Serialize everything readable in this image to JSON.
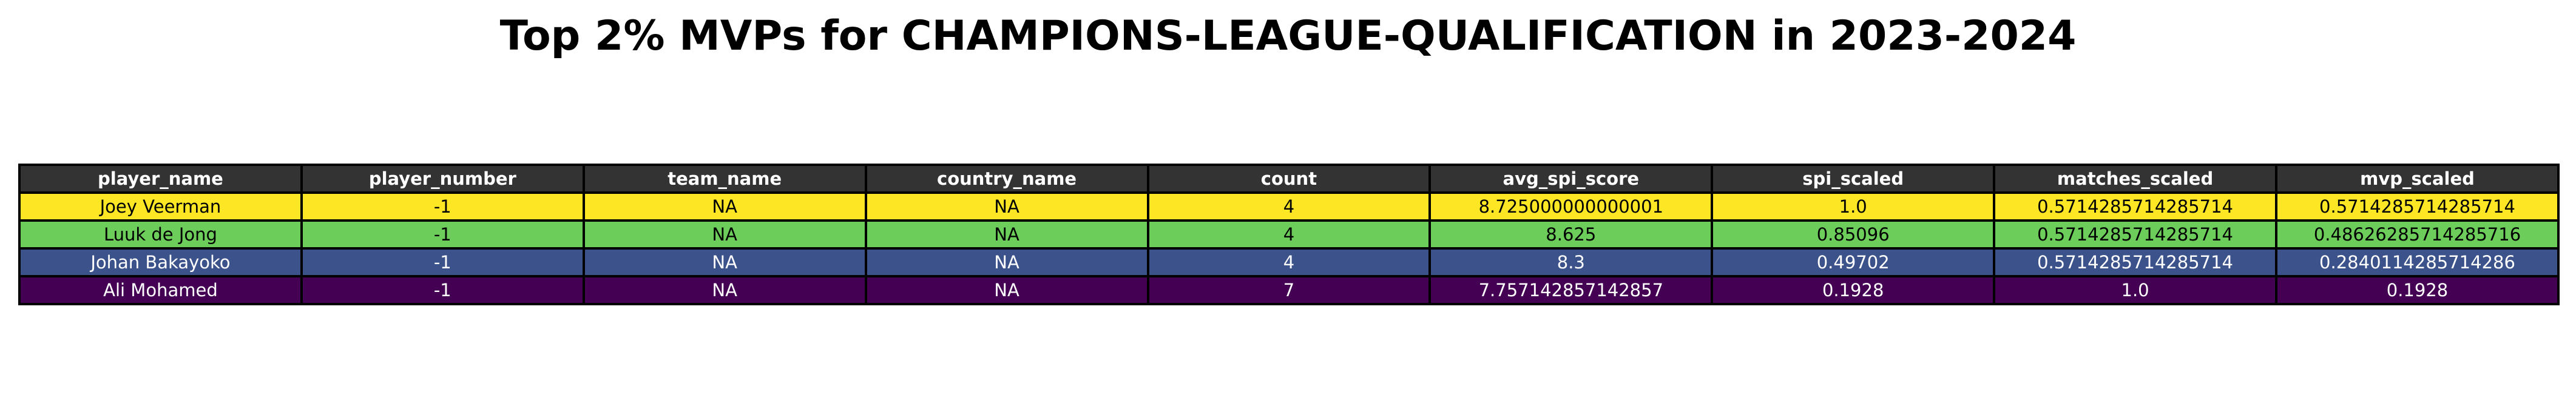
{
  "title": "Top 2% MVPs for CHAMPIONS-LEAGUE-QUALIFICATION in 2023-2024",
  "colors": {
    "header_bg": "#333333",
    "header_text": "#ffffff",
    "border": "#000000"
  },
  "chart_data": {
    "type": "table",
    "title": "Top 2% MVPs for CHAMPIONS-LEAGUE-QUALIFICATION in 2023-2024",
    "columns": [
      "player_name",
      "player_number",
      "team_name",
      "country_name",
      "count",
      "avg_spi_score",
      "spi_scaled",
      "matches_scaled",
      "mvp_scaled"
    ],
    "rows": [
      {
        "cells": [
          "Joey Veerman",
          "-1",
          "NA",
          "NA",
          "4",
          "8.725000000000001",
          "1.0",
          "0.5714285714285714",
          "0.5714285714285714"
        ],
        "bg": "#fde725",
        "fg": "#000000"
      },
      {
        "cells": [
          "Luuk de Jong",
          "-1",
          "NA",
          "NA",
          "4",
          "8.625",
          "0.85096",
          "0.5714285714285714",
          "0.48626285714285716"
        ],
        "bg": "#6ccd5a",
        "fg": "#000000"
      },
      {
        "cells": [
          "Johan Bakayoko",
          "-1",
          "NA",
          "NA",
          "4",
          "8.3",
          "0.49702",
          "0.5714285714285714",
          "0.2840114285714286"
        ],
        "bg": "#3b528b",
        "fg": "#ffffff"
      },
      {
        "cells": [
          "Ali Mohamed",
          "-1",
          "NA",
          "NA",
          "7",
          "7.757142857142857",
          "0.1928",
          "1.0",
          "0.1928"
        ],
        "bg": "#440154",
        "fg": "#ffffff"
      }
    ]
  }
}
